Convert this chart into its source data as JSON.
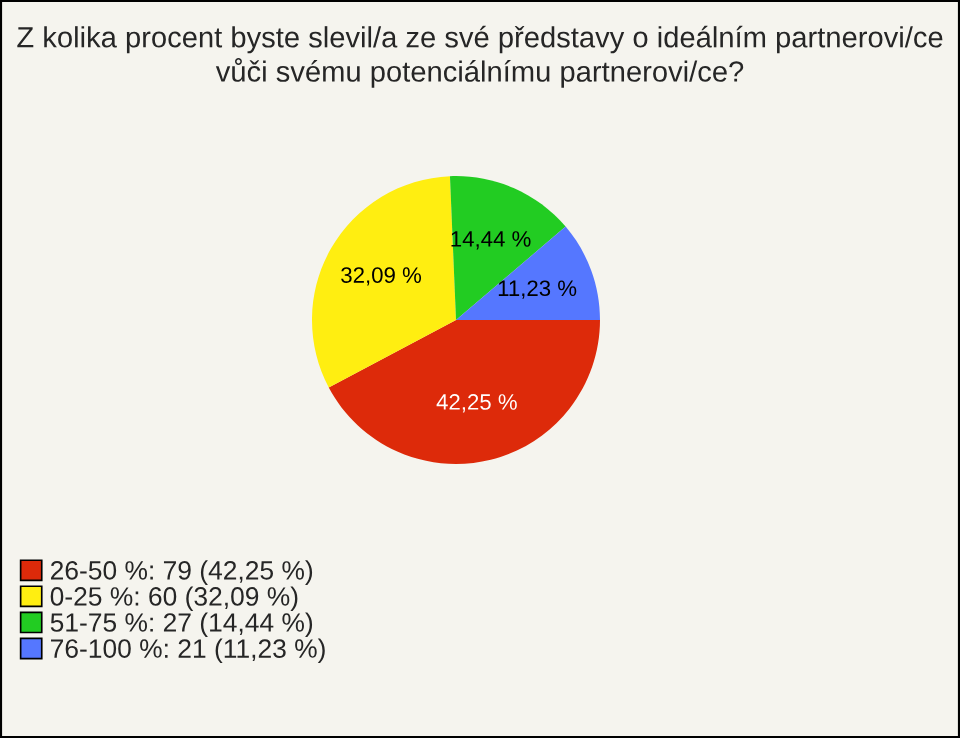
{
  "chart_data": {
    "type": "pie",
    "title": "Z kolika procent byste slevil/a ze své představy o ideálním partnerovi/ce vůči svému potenciálnímu partnerovi/ce?",
    "categories": [
      "26-50 %: 79 (42,25 %)",
      "0-25 %: 60 (32,09 %)",
      "51-75 %: 27 (14,44 %)",
      "76-100 %: 21 (11,23 %)"
    ],
    "values": [
      42.25,
      32.09,
      14.44,
      11.23
    ],
    "value_labels": [
      "42,25 %",
      "32,09 %",
      "14,44 %",
      "11,23 %"
    ],
    "colors": [
      "#dd2a0a",
      "#ffee11",
      "#22cc22",
      "#5577ff"
    ],
    "legend": "bottom left"
  }
}
